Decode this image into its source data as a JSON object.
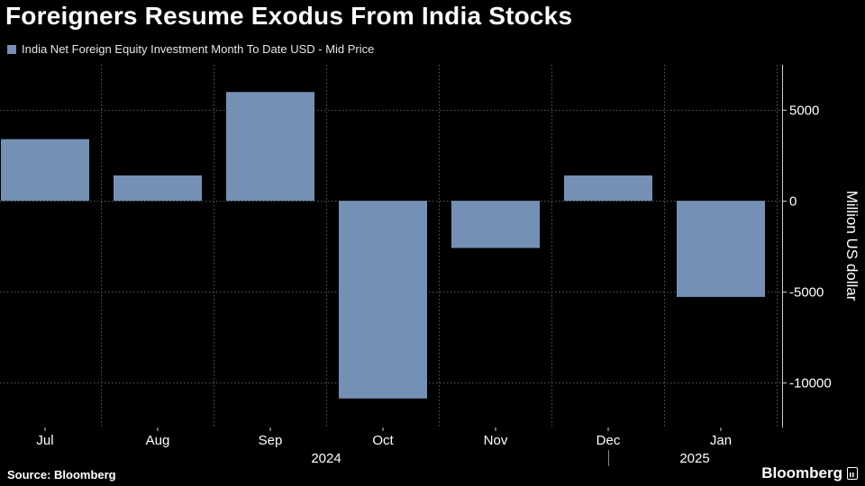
{
  "colors": {
    "background": "#000000",
    "bar": "#7590b5",
    "grid": "#5a5a5a",
    "text": "#ffffff"
  },
  "chart_data": {
    "type": "bar",
    "title": "Foreigners Resume Exodus From India Stocks",
    "series": [
      {
        "name": "India Net Foreign Equity Investment Month To Date USD - Mid Price",
        "values": [
          3400,
          1400,
          6000,
          -10900,
          -2600,
          1400,
          -5300
        ]
      }
    ],
    "categories": [
      "Jul",
      "Aug",
      "Sep",
      "Oct",
      "Nov",
      "Dec",
      "Jan"
    ],
    "year_labels": [
      "2024",
      "2025"
    ],
    "ylabel": "Million US dollar",
    "yticks": [
      5000,
      0,
      -5000,
      -10000
    ],
    "ylim": [
      -12500,
      7500
    ],
    "y_axis_position": "right",
    "grid": true,
    "legend_position": "top-left"
  },
  "footer": {
    "source": "Source: Bloomberg",
    "brand": "Bloomberg",
    "brand_icon": "bloomberg-terminal-icon"
  }
}
